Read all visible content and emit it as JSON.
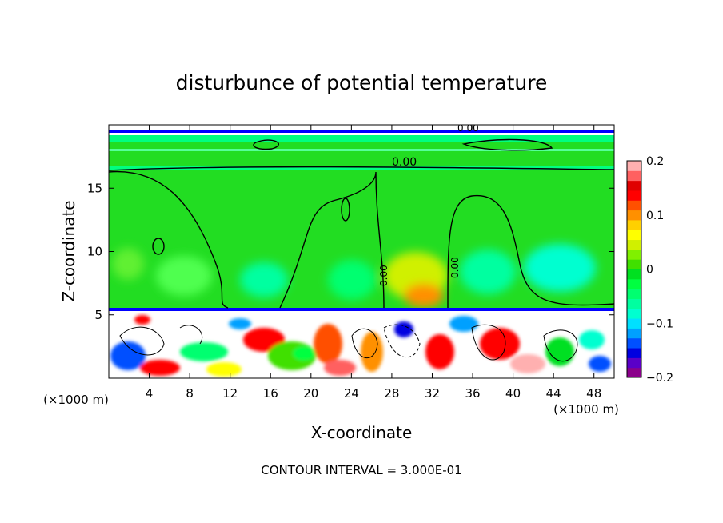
{
  "chart_data": {
    "type": "heatmap",
    "title": "disturbunce of potential temperature",
    "xlabel": "X-coordinate",
    "ylabel": "Z-coordinate",
    "x_unit": "(×1000 m)",
    "z_unit": "(×1000 m)",
    "xlim": [
      0,
      50
    ],
    "ylim": [
      0,
      20
    ],
    "x_ticks": [
      4,
      8,
      12,
      16,
      20,
      24,
      28,
      32,
      36,
      40,
      44,
      48
    ],
    "y_ticks": [
      5,
      10,
      15
    ],
    "footer": "CONTOUR INTERVAL = 3.000E-01",
    "contour_labels": [
      "0.00",
      "0.00",
      "0.00",
      "0.00"
    ],
    "colorbar": {
      "min": -0.2,
      "max": 0.2,
      "tick_labels": [
        "0.2",
        "0.1",
        "0",
        "−0.1",
        "−0.2"
      ],
      "tick_values": [
        0.2,
        0.1,
        0,
        -0.1,
        -0.2
      ],
      "colors": [
        "#8b008b",
        "#5a00c8",
        "#0000e0",
        "#0050ff",
        "#00a0ff",
        "#00e0ff",
        "#00ffd0",
        "#00ffa0",
        "#00ff70",
        "#00ff40",
        "#00e020",
        "#40e000",
        "#80f000",
        "#d0f000",
        "#ffff00",
        "#ffd000",
        "#ff9000",
        "#ff5000",
        "#ff0000",
        "#e00000",
        "#ff6060",
        "#ffb0b0"
      ]
    },
    "field": {
      "background": "#22dd22",
      "stratosphere_band": "#00ff80",
      "turbulent_layer_top": 5.3
    }
  }
}
